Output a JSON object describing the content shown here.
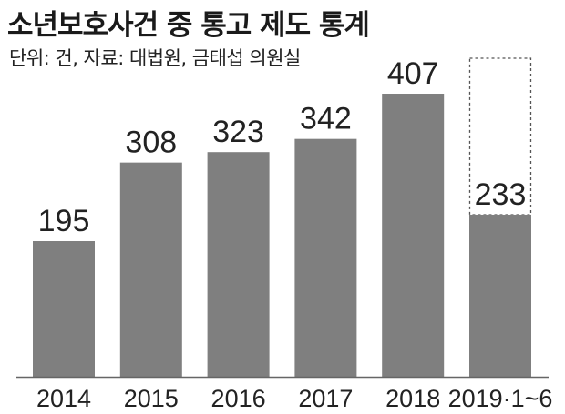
{
  "title": "소년보호사건 중 통고 제도 통계",
  "subtitle": "단위: 건, 자료: 대법원, 금태섭 의원실",
  "chart_data": {
    "type": "bar",
    "categories": [
      "2014",
      "2015",
      "2016",
      "2017",
      "2018",
      "2019·1~6"
    ],
    "values": [
      195,
      308,
      323,
      342,
      407,
      233
    ],
    "partial_period": "2019·1~6",
    "ylim": [
      0,
      460
    ],
    "grid": false,
    "legend": "none",
    "colors": {
      "bar": "#7f7f7f",
      "partial_outline": "#555555",
      "axis": "#666666"
    }
  }
}
